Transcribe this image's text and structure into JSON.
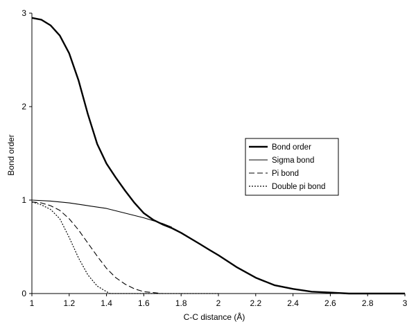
{
  "chart_data": {
    "type": "line",
    "title": "",
    "xlabel": "C-C distance (Å)",
    "ylabel": "Bond order",
    "xlim": [
      1,
      3
    ],
    "ylim": [
      0,
      3
    ],
    "x_ticks": [
      "1",
      "1.2",
      "1.4",
      "1.6",
      "1.8",
      "2",
      "2.2",
      "2.4",
      "2.6",
      "2.8",
      "3"
    ],
    "y_ticks": [
      "0",
      "1",
      "2",
      "3"
    ],
    "grid": false,
    "legend_position": "right",
    "series": [
      {
        "name": "Bond order",
        "style": "solid-thick",
        "color": "#000000",
        "x": [
          1.0,
          1.05,
          1.1,
          1.15,
          1.2,
          1.25,
          1.3,
          1.35,
          1.4,
          1.45,
          1.5,
          1.55,
          1.6,
          1.65,
          1.7,
          1.75,
          1.8,
          1.85,
          1.9,
          1.95,
          2.0,
          2.1,
          2.2,
          2.3,
          2.4,
          2.5,
          2.6,
          2.7,
          2.8,
          3.0
        ],
        "y": [
          2.95,
          2.93,
          2.87,
          2.76,
          2.57,
          2.28,
          1.92,
          1.6,
          1.39,
          1.24,
          1.1,
          0.97,
          0.86,
          0.79,
          0.74,
          0.7,
          0.65,
          0.59,
          0.53,
          0.47,
          0.41,
          0.28,
          0.17,
          0.09,
          0.05,
          0.02,
          0.01,
          0.0,
          0.0,
          0.0
        ]
      },
      {
        "name": "Sigma bond",
        "style": "solid-thin",
        "color": "#000000",
        "x": [
          1.0,
          1.1,
          1.2,
          1.3,
          1.4,
          1.5,
          1.6,
          1.7,
          1.75
        ],
        "y": [
          1.0,
          0.99,
          0.97,
          0.94,
          0.91,
          0.86,
          0.81,
          0.75,
          0.71
        ]
      },
      {
        "name": "Pi bond",
        "style": "dashed",
        "color": "#000000",
        "x": [
          1.0,
          1.05,
          1.1,
          1.15,
          1.2,
          1.25,
          1.3,
          1.35,
          1.4,
          1.45,
          1.5,
          1.55,
          1.6,
          1.65,
          1.7,
          1.73,
          1.8,
          2.0,
          2.5,
          3.0
        ],
        "y": [
          0.98,
          0.97,
          0.94,
          0.89,
          0.8,
          0.68,
          0.54,
          0.4,
          0.27,
          0.17,
          0.1,
          0.05,
          0.02,
          0.01,
          0.0,
          0.0,
          0.0,
          0.0,
          0.0,
          0.0
        ]
      },
      {
        "name": "Double pi bond",
        "style": "dotted",
        "color": "#000000",
        "x": [
          1.0,
          1.05,
          1.1,
          1.15,
          1.2,
          1.25,
          1.3,
          1.35,
          1.4,
          1.42,
          1.5,
          1.7,
          2.0
        ],
        "y": [
          0.98,
          0.95,
          0.9,
          0.8,
          0.6,
          0.38,
          0.2,
          0.08,
          0.02,
          0.0,
          0.0,
          0.0,
          0.0
        ]
      }
    ]
  }
}
